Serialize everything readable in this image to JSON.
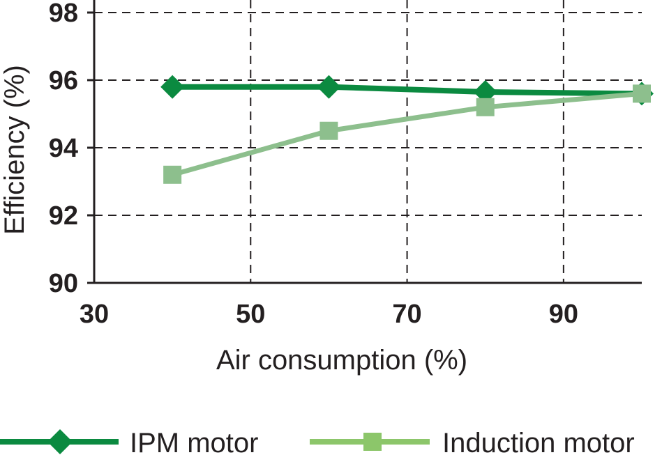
{
  "chart_data": {
    "type": "line",
    "xlabel": "Air consumption (%)",
    "ylabel": "Efficiency (%)",
    "xlim": [
      30,
      100
    ],
    "ylim": [
      90,
      98
    ],
    "x_ticks": [
      "30",
      "50",
      "70",
      "90"
    ],
    "y_ticks": [
      "90",
      "92",
      "94",
      "96",
      "98"
    ],
    "grid": true,
    "legend_position": "bottom",
    "series": [
      {
        "name": "IPM motor",
        "color": "#0b8a40",
        "marker": "diamond",
        "x": [
          40,
          60,
          80,
          100
        ],
        "y": [
          95.8,
          95.8,
          95.65,
          95.6
        ]
      },
      {
        "name": "Induction motor",
        "color": "#8dbf8d",
        "legend_color": "#8cc66a",
        "marker": "square",
        "x": [
          40,
          60,
          80,
          100
        ],
        "y": [
          93.2,
          94.5,
          95.2,
          95.6
        ]
      }
    ]
  }
}
